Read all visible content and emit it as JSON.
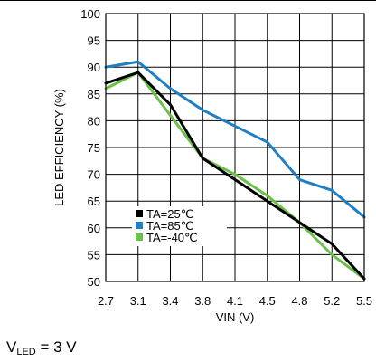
{
  "chart_data": {
    "type": "line",
    "title": "",
    "xlabel": "VIN (V)",
    "ylabel": "LED EFFICIENCY (%)",
    "x_tick_labels": [
      "2.7",
      "3.1",
      "3.4",
      "3.8",
      "4.1",
      "4.5",
      "4.8",
      "5.2",
      "5.5"
    ],
    "x_tick_values": [
      2.7,
      3.1,
      3.4,
      3.8,
      4.1,
      4.5,
      4.8,
      5.2,
      5.5
    ],
    "xlim": [
      2.7,
      5.5
    ],
    "ylim": [
      50,
      100
    ],
    "y_ticks": [
      50,
      55,
      60,
      65,
      70,
      75,
      80,
      85,
      90,
      95,
      100
    ],
    "grid": true,
    "legend_position": "bottom-left",
    "series": [
      {
        "name": "TA=25℃",
        "color": "#000000",
        "x": [
          2.7,
          3.1,
          3.4,
          3.8,
          4.1,
          4.5,
          4.8,
          5.2,
          5.5
        ],
        "y": [
          87,
          89,
          83,
          73,
          69,
          65,
          61,
          57,
          50.5
        ]
      },
      {
        "name": "TA=85℃",
        "color": "#1f7fc4",
        "x": [
          2.7,
          3.1,
          3.4,
          3.8,
          4.1,
          4.5,
          4.8,
          5.2,
          5.5
        ],
        "y": [
          90,
          91,
          86,
          82,
          79,
          76,
          69,
          67,
          62
        ]
      },
      {
        "name": "TA=-40℃",
        "color": "#6cc04a",
        "x": [
          2.7,
          3.1,
          3.4,
          3.8,
          4.1,
          4.5,
          4.8,
          5.2,
          5.5
        ],
        "y": [
          86,
          89,
          81,
          73,
          70,
          66,
          61,
          55,
          50.5
        ]
      }
    ]
  },
  "caption": {
    "symbol": "V",
    "subscript": "LED",
    "rest": " = 3 V"
  }
}
